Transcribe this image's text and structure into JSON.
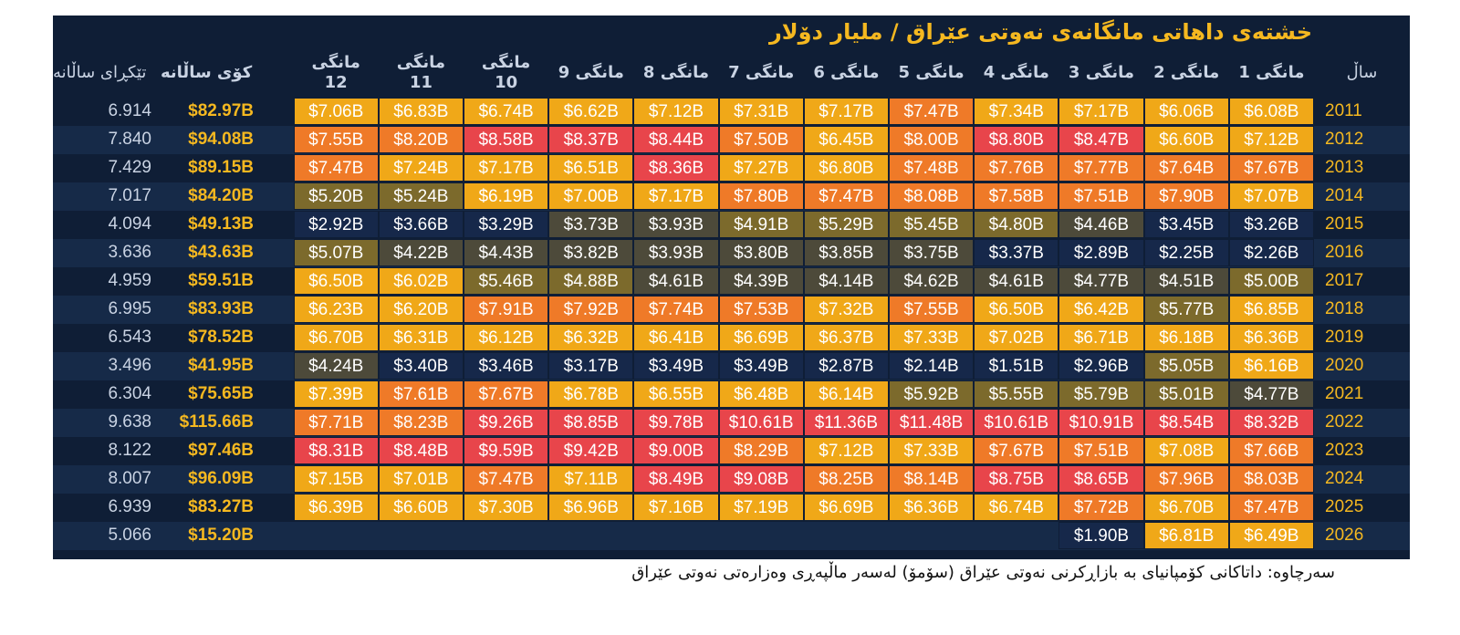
{
  "title": "خشتەی داهاتی مانگانەی نەوتی عێراق / ملیار دۆلار",
  "source": "سەرچاوە: داتاکانی کۆمپانیای بە بازاڕکرنی نەوتی عێراق (سۆمۆ) لەسەر ماڵپەڕی وەزارەتی نەوتی عێراق",
  "headers": {
    "year": "ساڵ",
    "months": [
      "مانگی 1",
      "مانگی 2",
      "مانگی 3",
      "مانگی 4",
      "مانگی 5",
      "مانگی 6",
      "مانگی 7",
      "مانگی 8",
      "مانگی 9",
      "مانگی 10",
      "مانگی 11",
      "مانگی 12"
    ],
    "total": "کۆی ساڵانە",
    "average": "تێکڕای ساڵانە"
  },
  "colors": {
    "background": "#0f1e36",
    "title": "#f5b820",
    "row_alt": "#162a48",
    "low": "#16284a",
    "mid_low": "#4d4a3a",
    "mid": "#7c6a2c",
    "orange_yellow": "#f0a818",
    "orange": "#ef7a28",
    "red": "#e8454b"
  },
  "chart_data": {
    "type": "table",
    "title": "خشتەی داهاتی مانگانەی نەوتی عێراق / ملیار دۆلار",
    "columns": [
      "ساڵ",
      "مانگی 1",
      "مانگی 2",
      "مانگی 3",
      "مانگی 4",
      "مانگی 5",
      "مانگی 6",
      "مانگی 7",
      "مانگی 8",
      "مانگی 9",
      "مانگی 10",
      "مانگی 11",
      "مانگی 12",
      "کۆی ساڵانە",
      "تێکڕای ساڵانە"
    ],
    "rows": [
      {
        "year": "2011",
        "months": [
          "$6.08B",
          "$6.06B",
          "$7.17B",
          "$7.34B",
          "$7.47B",
          "$7.17B",
          "$7.31B",
          "$7.12B",
          "$6.62B",
          "$6.74B",
          "$6.83B",
          "$7.06B"
        ],
        "total": "$82.97B",
        "average": "6.914"
      },
      {
        "year": "2012",
        "months": [
          "$7.12B",
          "$6.60B",
          "$8.47B",
          "$8.80B",
          "$8.00B",
          "$6.45B",
          "$7.50B",
          "$8.44B",
          "$8.37B",
          "$8.58B",
          "$8.20B",
          "$7.55B"
        ],
        "total": "$94.08B",
        "average": "7.840"
      },
      {
        "year": "2013",
        "months": [
          "$7.67B",
          "$7.64B",
          "$7.77B",
          "$7.76B",
          "$7.48B",
          "$6.80B",
          "$7.27B",
          "$8.36B",
          "$6.51B",
          "$7.17B",
          "$7.24B",
          "$7.47B"
        ],
        "total": "$89.15B",
        "average": "7.429"
      },
      {
        "year": "2014",
        "months": [
          "$7.07B",
          "$7.90B",
          "$7.51B",
          "$7.58B",
          "$8.08B",
          "$7.47B",
          "$7.80B",
          "$7.17B",
          "$7.00B",
          "$6.19B",
          "$5.24B",
          "$5.20B"
        ],
        "total": "$84.20B",
        "average": "7.017"
      },
      {
        "year": "2015",
        "months": [
          "$3.26B",
          "$3.45B",
          "$4.46B",
          "$4.80B",
          "$5.45B",
          "$5.29B",
          "$4.91B",
          "$3.93B",
          "$3.73B",
          "$3.29B",
          "$3.66B",
          "$2.92B"
        ],
        "total": "$49.13B",
        "average": "4.094"
      },
      {
        "year": "2016",
        "months": [
          "$2.26B",
          "$2.25B",
          "$2.89B",
          "$3.37B",
          "$3.75B",
          "$3.85B",
          "$3.80B",
          "$3.93B",
          "$3.82B",
          "$4.43B",
          "$4.22B",
          "$5.07B"
        ],
        "total": "$43.63B",
        "average": "3.636"
      },
      {
        "year": "2017",
        "months": [
          "$5.00B",
          "$4.51B",
          "$4.77B",
          "$4.61B",
          "$4.62B",
          "$4.14B",
          "$4.39B",
          "$4.61B",
          "$4.88B",
          "$5.46B",
          "$6.02B",
          "$6.50B"
        ],
        "total": "$59.51B",
        "average": "4.959"
      },
      {
        "year": "2018",
        "months": [
          "$6.85B",
          "$5.77B",
          "$6.42B",
          "$6.50B",
          "$7.55B",
          "$7.32B",
          "$7.53B",
          "$7.74B",
          "$7.92B",
          "$7.91B",
          "$6.20B",
          "$6.23B"
        ],
        "total": "$83.93B",
        "average": "6.995"
      },
      {
        "year": "2019",
        "months": [
          "$6.36B",
          "$6.18B",
          "$6.71B",
          "$7.02B",
          "$7.33B",
          "$6.37B",
          "$6.69B",
          "$6.41B",
          "$6.32B",
          "$6.12B",
          "$6.31B",
          "$6.70B"
        ],
        "total": "$78.52B",
        "average": "6.543"
      },
      {
        "year": "2020",
        "months": [
          "$6.16B",
          "$5.05B",
          "$2.96B",
          "$1.51B",
          "$2.14B",
          "$2.87B",
          "$3.49B",
          "$3.49B",
          "$3.17B",
          "$3.46B",
          "$3.40B",
          "$4.24B"
        ],
        "total": "$41.95B",
        "average": "3.496"
      },
      {
        "year": "2021",
        "months": [
          "$4.77B",
          "$5.01B",
          "$5.79B",
          "$5.55B",
          "$5.92B",
          "$6.14B",
          "$6.48B",
          "$6.55B",
          "$6.78B",
          "$7.67B",
          "$7.61B",
          "$7.39B"
        ],
        "total": "$75.65B",
        "average": "6.304"
      },
      {
        "year": "2022",
        "months": [
          "$8.32B",
          "$8.54B",
          "$10.91B",
          "$10.61B",
          "$11.48B",
          "$11.36B",
          "$10.61B",
          "$9.78B",
          "$8.85B",
          "$9.26B",
          "$8.23B",
          "$7.71B"
        ],
        "total": "$115.66B",
        "average": "9.638"
      },
      {
        "year": "2023",
        "months": [
          "$7.66B",
          "$7.08B",
          "$7.51B",
          "$7.67B",
          "$7.33B",
          "$7.12B",
          "$8.29B",
          "$9.00B",
          "$9.42B",
          "$9.59B",
          "$8.48B",
          "$8.31B"
        ],
        "total": "$97.46B",
        "average": "8.122"
      },
      {
        "year": "2024",
        "months": [
          "$8.03B",
          "$7.96B",
          "$8.65B",
          "$8.75B",
          "$8.14B",
          "$8.25B",
          "$9.08B",
          "$8.49B",
          "$7.11B",
          "$7.47B",
          "$7.01B",
          "$7.15B"
        ],
        "total": "$96.09B",
        "average": "8.007"
      },
      {
        "year": "2025",
        "months": [
          "$7.47B",
          "$6.70B",
          "$7.72B",
          "$6.74B",
          "$6.36B",
          "$6.69B",
          "$7.19B",
          "$7.16B",
          "$6.96B",
          "$7.30B",
          "$6.60B",
          "$6.39B"
        ],
        "total": "$83.27B",
        "average": "6.939"
      },
      {
        "year": "2026",
        "months": [
          "$6.49B",
          "$6.81B",
          "$1.90B",
          "",
          "",
          "",
          "",
          "",
          "",
          "",
          "",
          ""
        ],
        "total": "$15.20B",
        "average": "5.066"
      }
    ]
  }
}
